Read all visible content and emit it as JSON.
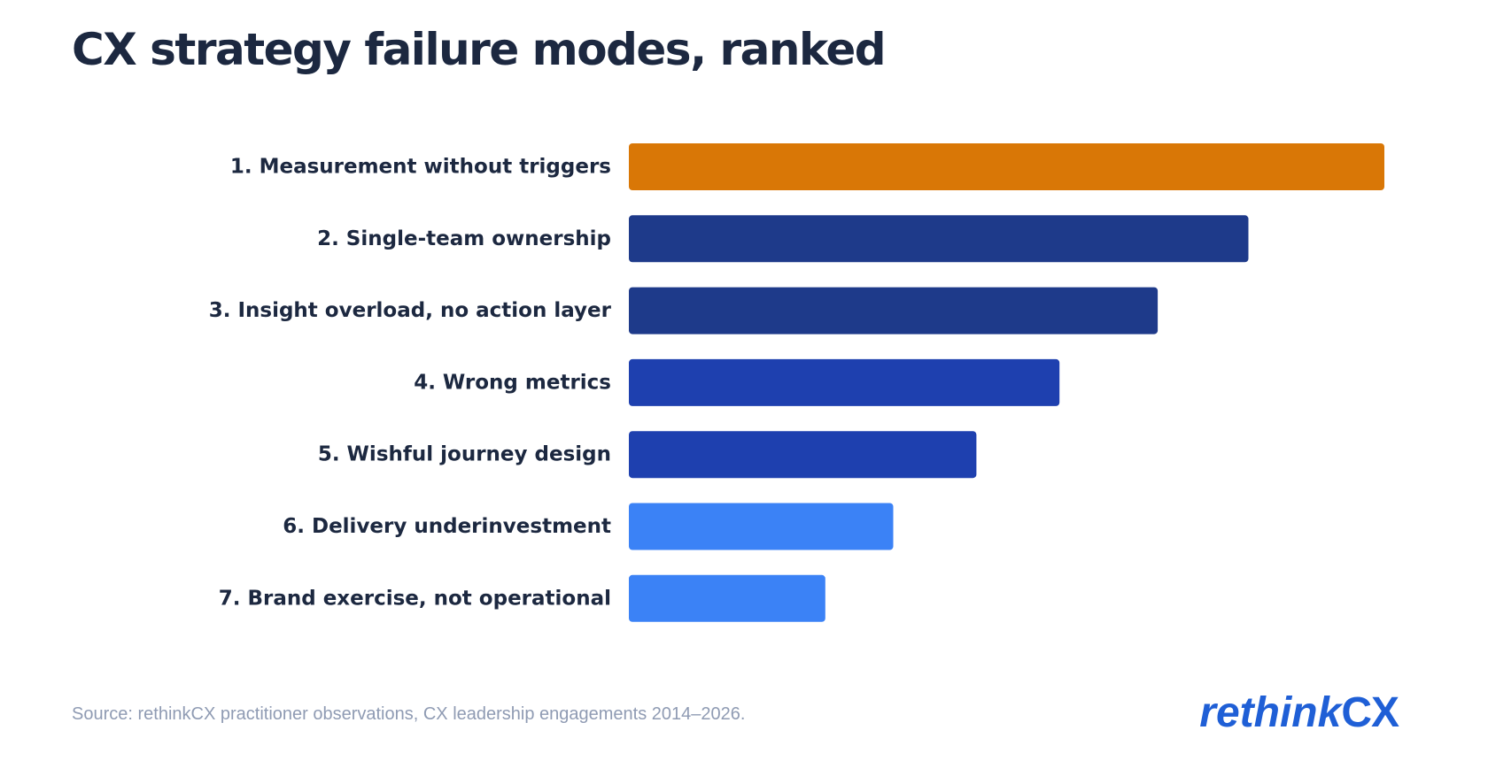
{
  "title": "CX strategy failure modes, ranked",
  "source": "Source: rethinkCX practitioner observations, CX leadership engagements 2014–2026.",
  "brand": {
    "logo_text": "rethinkCX"
  },
  "colors": {
    "highlight": "#D97706",
    "dark_navy": "#1E3A8A",
    "royal_blue": "#1E40AF",
    "light_blue": "#3B82F6",
    "label_text": "#1C2840",
    "source_text": "#8F9BB3",
    "brand_blue": "#1F5FD6"
  },
  "chart_data": {
    "type": "bar",
    "orientation": "horizontal",
    "title": "CX strategy failure modes, ranked",
    "xlabel": "",
    "ylabel": "",
    "xlim": [
      0,
      100
    ],
    "grid": false,
    "legend": "none",
    "value_axis_shown": false,
    "categories": [
      "1. Measurement without triggers",
      "2. Single-team ownership",
      "3. Insight overload, no action layer",
      "4. Wrong metrics",
      "5. Wishful journey design",
      "6. Delivery underinvestment",
      "7. Brand exercise, not operational"
    ],
    "values": [
      100,
      82,
      70,
      57,
      46,
      35,
      26
    ],
    "bar_colors": [
      "#D97706",
      "#1E3A8A",
      "#1E3A8A",
      "#1E40AF",
      "#1E40AF",
      "#3B82F6",
      "#3B82F6"
    ]
  }
}
